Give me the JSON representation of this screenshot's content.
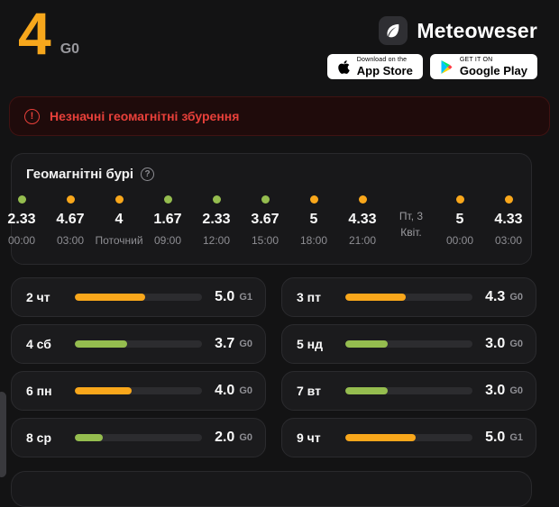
{
  "header": {
    "kp_value": "4",
    "kp_scale": "G0",
    "brand": "Meteoweser",
    "badges": {
      "appstore": {
        "line1": "Download on the",
        "line2": "App Store"
      },
      "googleplay": {
        "line1": "GET IT ON",
        "line2": "Google Play"
      }
    }
  },
  "alert": {
    "text": "Незначні геомагнітні збурення"
  },
  "storm_card": {
    "title": "Геомагнітні бурі",
    "help_glyph": "?",
    "alert_glyph": "!",
    "timeline": [
      {
        "value": "2.33",
        "time": "00:00",
        "level": "green"
      },
      {
        "value": "4.67",
        "time": "03:00",
        "level": "orange"
      },
      {
        "value": "4",
        "time": "Поточний",
        "level": "orange"
      },
      {
        "value": "1.67",
        "time": "09:00",
        "level": "green"
      },
      {
        "value": "2.33",
        "time": "12:00",
        "level": "green"
      },
      {
        "value": "3.67",
        "time": "15:00",
        "level": "green"
      },
      {
        "value": "5",
        "time": "18:00",
        "level": "orange"
      },
      {
        "value": "4.33",
        "time": "21:00",
        "level": "orange"
      },
      {
        "type": "date",
        "line1": "Пт, 3",
        "line2": "Квіт."
      },
      {
        "value": "5",
        "time": "00:00",
        "level": "orange"
      },
      {
        "value": "4.33",
        "time": "03:00",
        "level": "orange"
      }
    ]
  },
  "daily_scale_max": 9,
  "daily": [
    {
      "day": "2 чт",
      "value": "5.0",
      "num": 5.0,
      "scale": "G1",
      "level": "orange"
    },
    {
      "day": "3 пт",
      "value": "4.3",
      "num": 4.3,
      "scale": "G0",
      "level": "orange"
    },
    {
      "day": "4 сб",
      "value": "3.7",
      "num": 3.7,
      "scale": "G0",
      "level": "green"
    },
    {
      "day": "5 нд",
      "value": "3.0",
      "num": 3.0,
      "scale": "G0",
      "level": "green"
    },
    {
      "day": "6 пн",
      "value": "4.0",
      "num": 4.0,
      "scale": "G0",
      "level": "orange"
    },
    {
      "day": "7 вт",
      "value": "3.0",
      "num": 3.0,
      "scale": "G0",
      "level": "green"
    },
    {
      "day": "8 ср",
      "value": "2.0",
      "num": 2.0,
      "scale": "G0",
      "level": "green"
    },
    {
      "day": "9 чт",
      "value": "5.0",
      "num": 5.0,
      "scale": "G1",
      "level": "orange"
    }
  ],
  "colors": {
    "orange": "#F9A71B",
    "green": "#95BD4F",
    "red": "#E8403A"
  }
}
